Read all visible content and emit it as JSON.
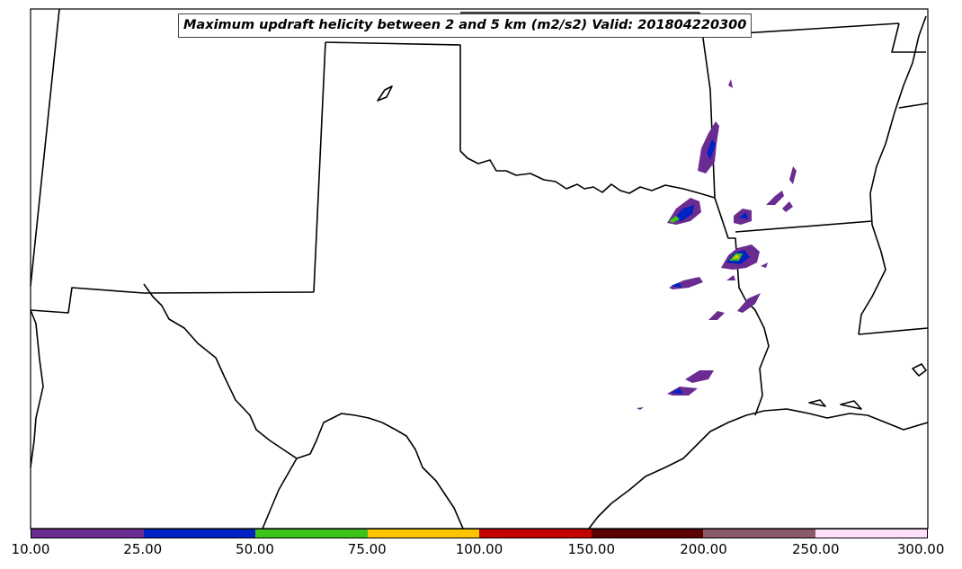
{
  "title": "Maximum updraft helicity between 2 and 5 km (m2/s2) Valid: 201804220300",
  "colorbar": {
    "ticks": [
      "10.00",
      "25.00",
      "50.00",
      "75.00",
      "100.00",
      "150.00",
      "200.00",
      "250.00",
      "300.00"
    ],
    "colors": [
      "#6b2c91",
      "#0022c4",
      "#3cc41a",
      "#ffc400",
      "#c40000",
      "#5a0000",
      "#8a5a6a",
      "#ffe0f8"
    ]
  },
  "legend_field": "updraft helicity (m2/s2)"
}
